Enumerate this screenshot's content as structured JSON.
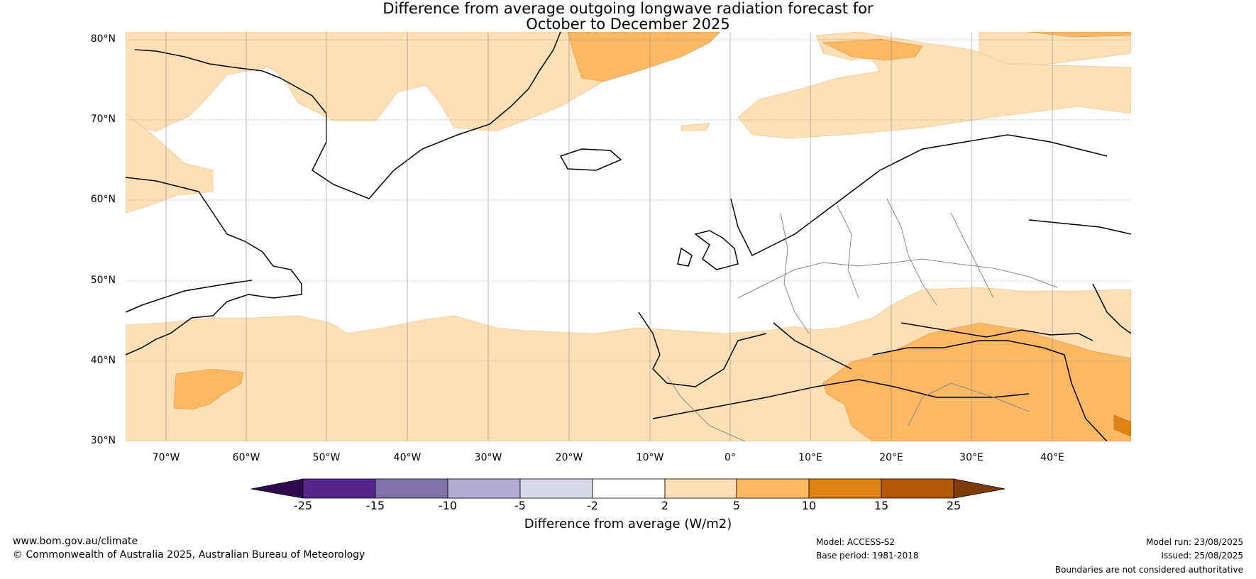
{
  "title_line1": "Difference from average outgoing longwave radiation forecast for",
  "title_line2": "October to December 2025",
  "lat_labels": [
    "80°N",
    "70°N",
    "60°N",
    "50°N",
    "40°N",
    "30°N"
  ],
  "lon_labels": [
    "70°W",
    "60°W",
    "50°W",
    "40°W",
    "30°W",
    "20°W",
    "10°W",
    "0°",
    "10°E",
    "20°E",
    "30°E",
    "40°E"
  ],
  "colorbar": {
    "title": "Difference from average (W/m2)",
    "ticks": [
      "-25",
      "-15",
      "-10",
      "-5",
      "-2",
      "2",
      "5",
      "10",
      "15",
      "25"
    ],
    "colors": {
      "lt_-25": "#2d0a4e",
      "-25_-15": "#542788",
      "-15_-10": "#8073ac",
      "-10_-5": "#b2abd2",
      "-5_-2": "#d8daeb",
      "-2_2": "#ffffff",
      "2_5": "#fee0b6",
      "5_10": "#fdb863",
      "10_15": "#e08214",
      "15_25": "#b35806",
      "gt_25": "#7f3b08"
    }
  },
  "footer": {
    "url": "www.bom.gov.au/climate",
    "copyright": "© Commonwealth of Australia 2025, Australian Bureau of Meteorology",
    "model": "Model: ACCESS-S2",
    "base_period": "Base period: 1981-2018",
    "model_run": "Model run: 23/08/2025",
    "issued": "Issued: 25/08/2025",
    "disclaimer": "Boundaries are not considered authoritative"
  }
}
